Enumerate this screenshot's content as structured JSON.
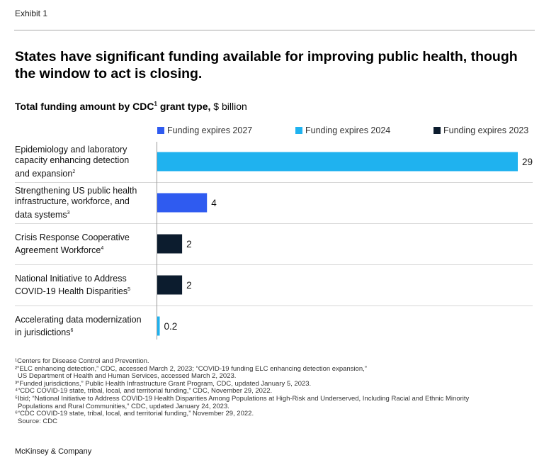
{
  "exhibit_label": "Exhibit 1",
  "title": "States have significant funding available for improving public health, though the window to act is closing.",
  "subtitle": {
    "bold": "Total funding amount by CDC",
    "sup": "1",
    "bold_tail": " grant type,",
    "unit": " $ billion"
  },
  "colors": {
    "funding_2027": "#2f5bf0",
    "funding_2024": "#1fb2ef",
    "funding_2023": "#0c1c2e"
  },
  "chart_data": {
    "type": "bar",
    "orientation": "horizontal",
    "legend": [
      {
        "name": "Funding expires 2027",
        "color": "#2f5bf0"
      },
      {
        "name": "Funding expires 2024",
        "color": "#1fb2ef"
      },
      {
        "name": "Funding expires 2023",
        "color": "#0c1c2e"
      }
    ],
    "legend_position": "top",
    "xlim": [
      0,
      29
    ],
    "grid": false,
    "categories": [
      {
        "lines": [
          "Epidemiology and laboratory",
          "capacity enhancing detection",
          "and expansion"
        ],
        "sup": "2"
      },
      {
        "lines": [
          "Strengthening US public health",
          "infrastructure, workforce, and",
          "data systems"
        ],
        "sup": "3"
      },
      {
        "lines": [
          "Crisis Response Cooperative",
          "Agreement Workforce"
        ],
        "sup": "4"
      },
      {
        "lines": [
          "National Initiative to Address",
          "COVID-19 Health Disparities"
        ],
        "sup": "5"
      },
      {
        "lines": [
          "Accelerating data modernization",
          "in jurisdictions"
        ],
        "sup": "6"
      }
    ],
    "values": [
      29,
      4,
      2,
      2,
      0.2
    ],
    "value_labels": [
      "29",
      "4",
      "2",
      "2",
      "0.2"
    ],
    "series_for_bar": [
      "Funding expires 2024",
      "Funding expires 2027",
      "Funding expires 2023",
      "Funding expires 2023",
      "Funding expires 2024"
    ]
  },
  "footnotes": [
    "¹Centers for Disease Control and Prevention.",
    "²“ELC enhancing detection,” CDC, accessed March 2, 2023; “COVID-19 funding ELC enhancing detection expansion,”",
    "US Department of Health and Human Services, accessed March 2, 2023.",
    "³“Funded jurisdictions,” Public Health Infrastructure Grant Program, CDC, updated January 5, 2023.",
    "⁴“CDC COVID-19 state, tribal, local, and territorial funding,” CDC, November 29, 2022.",
    "⁵Ibid; “National Initiative to Address COVID-19 Health Disparities Among Populations at High-Risk and Underserved, Including Racial and Ethnic Minority",
    "Populations and Rural Communities,” CDC, updated January 24, 2023.",
    "⁶“CDC COVID-19 state, tribal, local, and territorial funding,” November 29, 2022.",
    "Source: CDC"
  ],
  "brand": "McKinsey & Company"
}
